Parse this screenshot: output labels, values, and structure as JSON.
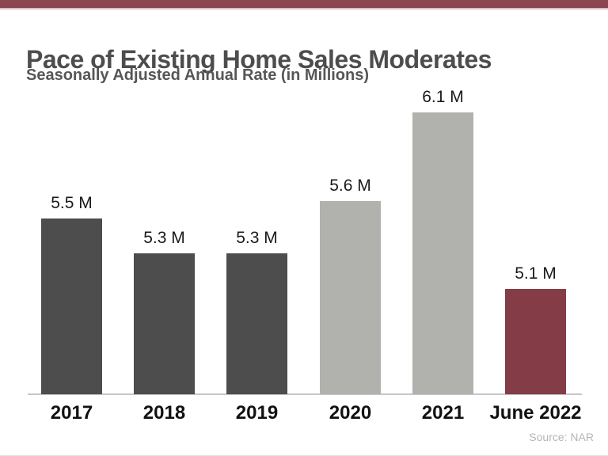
{
  "page": {
    "title": "Pace of Existing Home Sales Moderates",
    "subtitle": "Seasonally Adjusted Annual Rate (in Millions)",
    "source": "Source: NAR"
  },
  "colors": {
    "accent_band": "#8c4650",
    "accent_band_edge": "#d9c0c4",
    "dark_bar": "#4d4d4d",
    "light_bar": "#b1b1ae",
    "highlight_bar": "#843d46",
    "title_text": "#4d4d4d",
    "subtitle_text": "#565656",
    "label_text": "#1a1a1a",
    "axis_line": "#c6c6c6",
    "source_text": "#b5b5b5"
  },
  "chart_data": {
    "type": "bar",
    "title": "Pace of Existing Home Sales Moderates",
    "subtitle": "Seasonally Adjusted Annual Rate (in Millions)",
    "categories": [
      "2017",
      "2018",
      "2019",
      "2020",
      "2021",
      "June 2022"
    ],
    "values": [
      5.5,
      5.3,
      5.3,
      5.6,
      6.1,
      5.1
    ],
    "value_labels": [
      "5.5 M",
      "5.3 M",
      "5.3 M",
      "5.6 M",
      "6.1 M",
      "5.1 M"
    ],
    "bar_colors": [
      "#4d4d4d",
      "#4d4d4d",
      "#4d4d4d",
      "#b1b1ae",
      "#b1b1ae",
      "#843d46"
    ],
    "ylim": [
      4.5,
      6.3
    ],
    "xlabel": "",
    "ylabel": "",
    "grid": false,
    "legend": "none",
    "value_labels_position": "above-bars",
    "source": "Source: NAR"
  }
}
